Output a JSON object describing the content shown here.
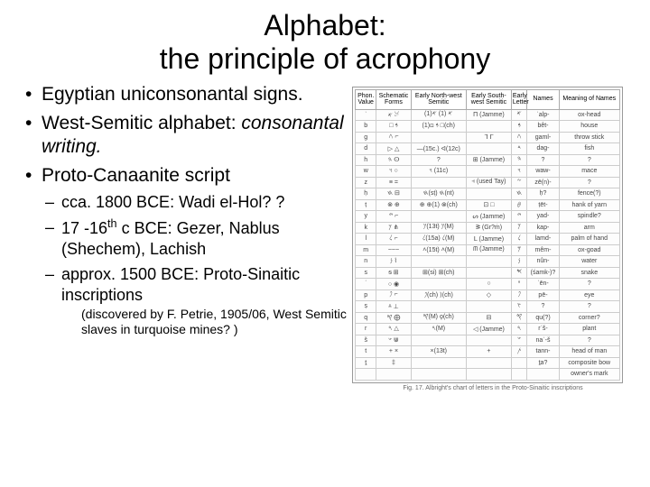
{
  "title_line1": "Alphabet:",
  "title_line2": "the principle of acrophony",
  "bullets": {
    "b1": "Egyptian uniconsonantal signs.",
    "b2_a": "West-Semitic alphabet: ",
    "b2_b": "consonantal writing.",
    "b3": "Proto-Canaanite script",
    "sub1": "cca. 1800 BCE: Wadi el-Hol? ?",
    "sub2_a": "17 -16",
    "sub2_sup": "th",
    "sub2_b": " c BCE: Gezer, Nablus (Shechem), Lachish",
    "sub3": "approx. 1500 BCE: Proto-Sinaitic inscriptions",
    "paren": "(discovered by F. Petrie, 1905/06, West Semitic slaves in turquoise mines? )"
  },
  "figure": {
    "headers": [
      "Phon. Value",
      "Schematic Forms",
      "Early North-west Semitic",
      "Early South-west Semitic",
      "Early Letter",
      "Names",
      "Meaning of Names"
    ],
    "rows": [
      [
        "ʾ",
        "𐤀 𓃾",
        "𐤀 (1) 𐤀(1)",
        "Π (Jamme)",
        "𐤀",
        "ʾalp-",
        "ox-head"
      ],
      [
        "b",
        "□ 𐤁",
        "𐤁 ⊡(1) □(ch)",
        "",
        "𐤁",
        "bêt-",
        "house"
      ],
      [
        "g",
        "𐤂 ⌐",
        "",
        "ᒣ ᒥ",
        "𐤂",
        "gaml-",
        "throw stick"
      ],
      [
        "d",
        "▷ △",
        "—(15c.) ᐊ(12c)",
        "",
        "𐤃",
        "dag-",
        "fish"
      ],
      [
        "h",
        "𐤄 ⵙ",
        "?",
        "⊞ (Jamme)",
        "𐤄",
        "?",
        "?"
      ],
      [
        "w",
        "𐤅 ○",
        "𐤅 (11c)",
        "",
        "𐤅",
        "waw-",
        "mace"
      ],
      [
        "z",
        "≡ =",
        "",
        "⫞ (used Tay)",
        "𐤆",
        "zē(n)-",
        "?"
      ],
      [
        "ḥ",
        "𐤇 ⊟",
        "𐤇(sṭ) 𐤇(nt)",
        "",
        "𐤇",
        "ḥ?",
        "fence(?)"
      ],
      [
        "ṭ",
        "⊗ ⊕",
        "⊕ ⊕(1) ⊗(ch)",
        "⊡ □",
        "𐤈",
        "ṭēt-",
        "hank of yarn"
      ],
      [
        "y",
        "𐤉 ⌐",
        "",
        "ᔕ (Jamme)",
        "𐤉",
        "yad-",
        "spindle?"
      ],
      [
        "k",
        "𐤊 ⋔",
        "𐤊(13t) 𐤊(M)",
        "ᕒ (Gr?ṁ)",
        "𐤊",
        "kap-",
        "arm"
      ],
      [
        "l",
        "𐤋 ⌐",
        "𐤋(15a) 𐤋(M)",
        "ᒪ (Jamme)",
        "𐤋",
        "lamd-",
        "palm of hand"
      ],
      [
        "m",
        "~~~",
        "˄(15t) ˄(M)",
        "ᗰ (Jamme)",
        "𐤌",
        "mêm-",
        "ox-goad"
      ],
      [
        "n",
        "𐤍 ⌇",
        "",
        "",
        "𐤍",
        "nûn-",
        "water"
      ],
      [
        "s",
        "ᵴ ⊞",
        "⊞(si) ⊞(ch)",
        "",
        "𐤎",
        "(śamk-)?",
        "snake"
      ],
      [
        "ʿ",
        "○ ◉",
        "",
        "○",
        "𐤏",
        "ʿēn-",
        "?"
      ],
      [
        "p",
        "𐤐 ⌐",
        "𐤐(ch) ⟩(ch)",
        "◇",
        "𐤐",
        "pē-",
        "eye"
      ],
      [
        "ṣ",
        "ᚆ ⊥",
        "",
        "",
        "𐤑",
        "?",
        "?"
      ],
      [
        "q",
        "𐤒 ⨁",
        "𐤒(M) ϙ(ch)",
        "⊟",
        "𐤒",
        "qu(?)",
        "corner?"
      ],
      [
        "r",
        "𐤓 △",
        "𐤓(M)",
        "◁ (Jamme)",
        "𐤓",
        "rʾš-",
        "plant"
      ],
      [
        "š",
        "𐤔 ⋓",
        "",
        "",
        "𐤔",
        "naʾ-š",
        "?"
      ],
      [
        "t",
        "+ ×",
        "×(13t)",
        "+",
        "𐤕",
        "tann-",
        "head of man"
      ],
      [
        "ṯ",
        "‡",
        "",
        "",
        "",
        "ṯa?",
        "composite bow"
      ],
      [
        "",
        "",
        "",
        "",
        "",
        "",
        "owner's mark"
      ]
    ],
    "caption": "Fig. 17. Albright's chart of letters in the Proto-Sinaitic inscriptions"
  },
  "style": {
    "bg": "#ffffff",
    "text": "#000000",
    "title_fontsize": 32,
    "body_fontsize": 21,
    "sub_fontsize": 18,
    "paren_fontsize": 14,
    "figure_border": "#999999",
    "figure_cell_border": "#cccccc",
    "figure_fontsize": 7
  }
}
